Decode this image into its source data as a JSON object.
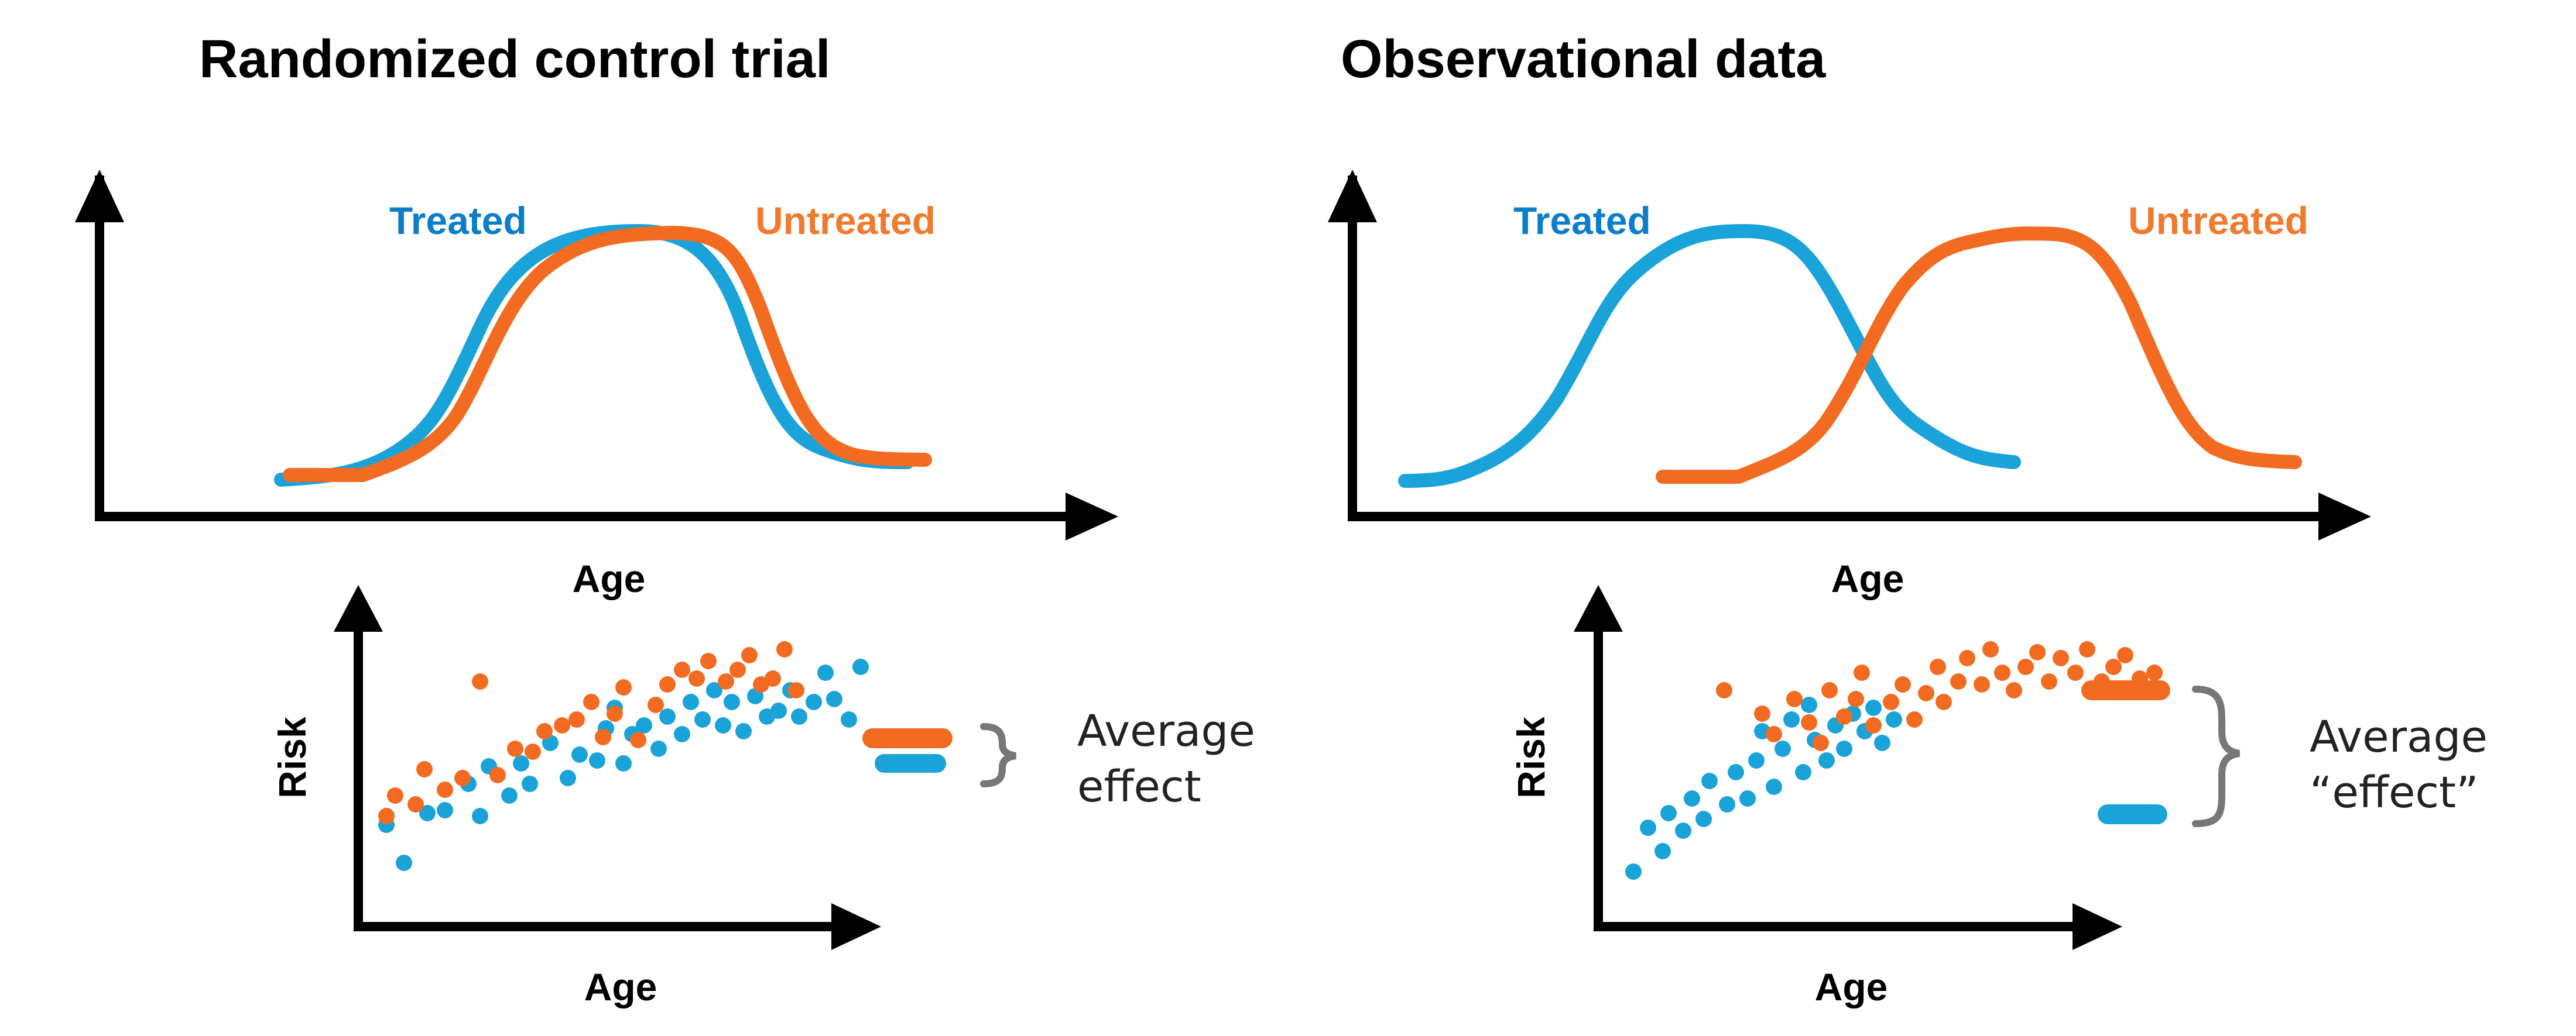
{
  "colors": {
    "treated": "#0a7ec8",
    "treated_line": "#1aa3d9",
    "untreated": "#f07a2e",
    "untreated_line": "#f26b21",
    "axis": "#000000",
    "brace": "#777777"
  },
  "panels": [
    {
      "title": "Randomized control trial",
      "top_chart": {
        "xlabel": "Age",
        "legend": {
          "treated": "Treated",
          "untreated": "Untreated"
        }
      },
      "bottom_chart": {
        "xlabel": "Age",
        "ylabel": "Risk",
        "annotation_line1": "Average",
        "annotation_line2": "effect"
      }
    },
    {
      "title": "Observational data",
      "top_chart": {
        "xlabel": "Age",
        "legend": {
          "treated": "Treated",
          "untreated": "Untreated"
        }
      },
      "bottom_chart": {
        "xlabel": "Age",
        "ylabel": "Risk",
        "annotation_line1": "Average",
        "annotation_line2": "“effect”"
      }
    }
  ]
}
